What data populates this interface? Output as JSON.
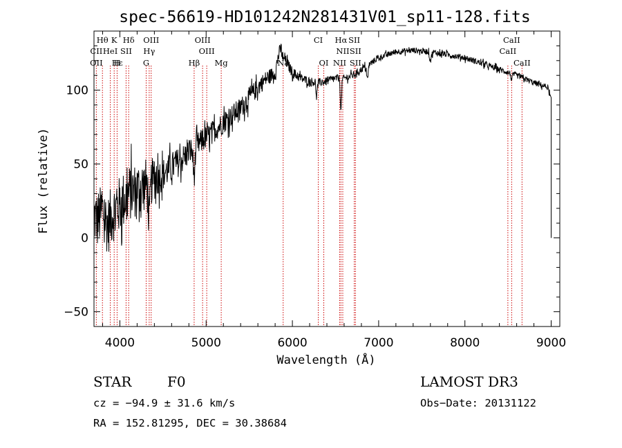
{
  "chart_data": {
    "type": "line",
    "title": "spec-56619-HD101242N281431V01_sp11-128.fits",
    "xlabel": "Wavelength (Å)",
    "ylabel": "Flux (relative)",
    "xlim": [
      3700,
      9100
    ],
    "ylim": [
      -60,
      140
    ],
    "xticks": [
      4000,
      5000,
      6000,
      7000,
      8000,
      9000
    ],
    "yticks": [
      -50,
      0,
      50,
      100
    ],
    "series": [
      {
        "name": "spectrum",
        "anchors": [
          [
            3700,
            15
          ],
          [
            3740,
            12
          ],
          [
            3800,
            18
          ],
          [
            3860,
            8
          ],
          [
            3900,
            15
          ],
          [
            3960,
            20
          ],
          [
            4000,
            22
          ],
          [
            4100,
            30
          ],
          [
            4200,
            33
          ],
          [
            4300,
            36
          ],
          [
            4400,
            40
          ],
          [
            4500,
            43
          ],
          [
            4600,
            48
          ],
          [
            4700,
            52
          ],
          [
            4800,
            58
          ],
          [
            4900,
            63
          ],
          [
            5000,
            68
          ],
          [
            5100,
            73
          ],
          [
            5200,
            78
          ],
          [
            5300,
            83
          ],
          [
            5400,
            88
          ],
          [
            5500,
            95
          ],
          [
            5600,
            102
          ],
          [
            5700,
            108
          ],
          [
            5800,
            112
          ],
          [
            5850,
            126
          ],
          [
            5880,
            130
          ],
          [
            5920,
            120
          ],
          [
            6000,
            112
          ],
          [
            6100,
            108
          ],
          [
            6200,
            106
          ],
          [
            6300,
            105
          ],
          [
            6400,
            106
          ],
          [
            6500,
            108
          ],
          [
            6600,
            108
          ],
          [
            6700,
            110
          ],
          [
            6800,
            114
          ],
          [
            6900,
            118
          ],
          [
            7000,
            122
          ],
          [
            7200,
            126
          ],
          [
            7400,
            127
          ],
          [
            7600,
            126
          ],
          [
            7800,
            124
          ],
          [
            8000,
            122
          ],
          [
            8200,
            118
          ],
          [
            8400,
            114
          ],
          [
            8600,
            110
          ],
          [
            8800,
            105
          ],
          [
            8960,
            102
          ],
          [
            8990,
            95
          ]
        ],
        "noise": [
          [
            3700,
            20
          ],
          [
            4000,
            20
          ],
          [
            4300,
            18
          ],
          [
            4500,
            11
          ],
          [
            5000,
            8
          ],
          [
            5500,
            7
          ],
          [
            5900,
            4
          ],
          [
            6200,
            3
          ],
          [
            7000,
            2
          ],
          [
            9000,
            2
          ]
        ],
        "dips": [
          [
            4340,
            25,
            15
          ],
          [
            4861,
            18,
            15
          ],
          [
            6563,
            22,
            10
          ],
          [
            5890,
            8,
            12
          ],
          [
            6280,
            8,
            12
          ],
          [
            6870,
            10,
            12
          ],
          [
            7600,
            6,
            15
          ],
          [
            8542,
            4,
            12
          ]
        ],
        "end_drop": [
          9000,
          0
        ]
      }
    ],
    "line_markers": [
      {
        "label": "Hθ",
        "wave": 3798,
        "row": 1
      },
      {
        "label": "K",
        "wave": 3934,
        "row": 1
      },
      {
        "label": "Hδ",
        "wave": 4102,
        "row": 1
      },
      {
        "label": "OIII",
        "wave": 4363,
        "row": 1
      },
      {
        "label": "OIII",
        "wave": 4959,
        "row": 1
      },
      {
        "label": "CI",
        "wave": 6300,
        "row": 1
      },
      {
        "label": "Hα",
        "wave": 6563,
        "row": 1
      },
      {
        "label": "SII",
        "wave": 6717,
        "row": 1
      },
      {
        "label": "CaII",
        "wave": 8542,
        "row": 1
      },
      {
        "label": "CII",
        "wave": 3727,
        "row": 2
      },
      {
        "label": "HeI",
        "wave": 3889,
        "row": 2
      },
      {
        "label": "SII",
        "wave": 4072,
        "row": 2
      },
      {
        "label": "Hγ",
        "wave": 4340,
        "row": 2
      },
      {
        "label": "OIII",
        "wave": 5007,
        "row": 2
      },
      {
        "label": "NII",
        "wave": 6584,
        "row": 2
      },
      {
        "label": "SII",
        "wave": 6731,
        "row": 2
      },
      {
        "label": "CaII",
        "wave": 8498,
        "row": 2
      },
      {
        "label": "OII",
        "wave": 3727,
        "row": 3
      },
      {
        "label": "Hε",
        "wave": 3970,
        "row": 3
      },
      {
        "label": "H",
        "wave": 3968,
        "row": 3
      },
      {
        "label": "G",
        "wave": 4305,
        "row": 3
      },
      {
        "label": "Hβ",
        "wave": 4861,
        "row": 3
      },
      {
        "label": "Mg",
        "wave": 5175,
        "row": 3
      },
      {
        "label": "Na",
        "wave": 5893,
        "row": 3
      },
      {
        "label": "OI",
        "wave": 6364,
        "row": 3
      },
      {
        "label": "NII",
        "wave": 6548,
        "row": 3
      },
      {
        "label": "SII",
        "wave": 6731,
        "row": 3
      },
      {
        "label": "CaII",
        "wave": 8662,
        "row": 3
      }
    ],
    "marker_lines": [
      3727,
      3798,
      3889,
      3934,
      3968,
      4072,
      4102,
      4305,
      4340,
      4363,
      4861,
      4959,
      5007,
      5175,
      5893,
      6300,
      6364,
      6548,
      6563,
      6584,
      6717,
      6731,
      8498,
      8542,
      8662
    ]
  },
  "info": {
    "class_label": "STAR",
    "subclass": "F0",
    "survey": "LAMOST DR3",
    "cz": "cz = −94.9 ± 31.6 km/s",
    "obs_date": "Obs−Date: 20131122",
    "coords": "RA = 152.81295, DEC =  30.38684"
  },
  "colors": {
    "line": "#000000",
    "marker": "#cc0000",
    "axis": "#000000"
  }
}
